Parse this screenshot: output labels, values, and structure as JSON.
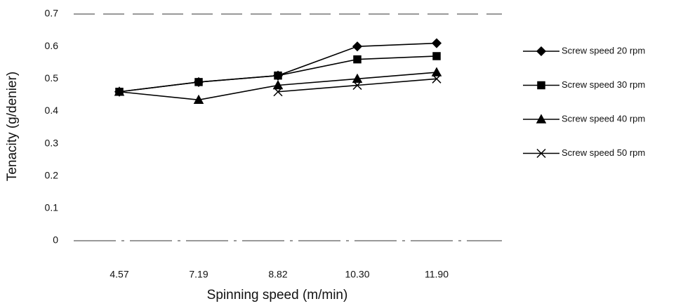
{
  "chart_data": {
    "type": "line",
    "x_label": "Spinning speed (m/min)",
    "y_label": "Tenacity (g/denier)",
    "categories": [
      "4.57",
      "7.19",
      "8.82",
      "10.30",
      "11.90"
    ],
    "series": [
      {
        "name": "Screw speed 20 rpm",
        "color": "#000000",
        "marker": "diamond",
        "values": [
          0.46,
          0.49,
          0.51,
          0.6,
          0.61
        ]
      },
      {
        "name": "Screw speed 30 rpm",
        "color": "#000000",
        "marker": "square",
        "values": [
          0.46,
          0.49,
          0.51,
          0.56,
          0.57
        ]
      },
      {
        "name": "Screw speed 40 rpm",
        "color": "#000000",
        "marker": "triangle",
        "values": [
          0.46,
          0.435,
          0.48,
          0.5,
          0.52
        ]
      },
      {
        "name": "Screw speed 50 rpm",
        "color": "#000000",
        "marker": "x",
        "values": [
          null,
          null,
          0.46,
          0.48,
          0.5
        ]
      }
    ],
    "ylim": [
      0,
      0.7
    ],
    "yticks": [
      0,
      0.1,
      0.2,
      0.3,
      0.4,
      0.5,
      0.6,
      0.7
    ],
    "legend": "right"
  }
}
